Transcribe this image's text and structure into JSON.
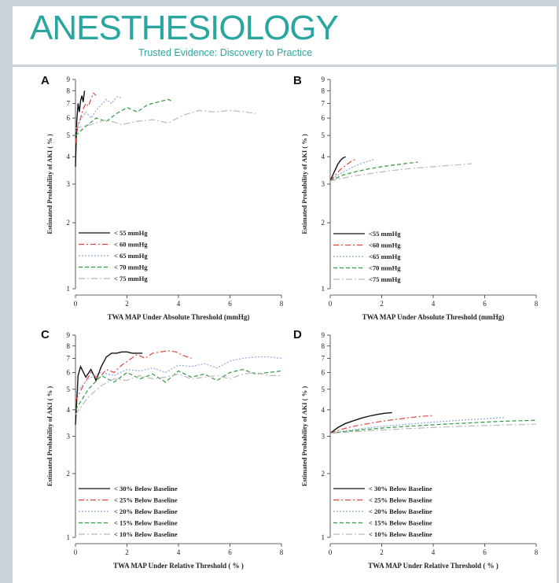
{
  "journal": {
    "title": "ANESTHESIOLOGY",
    "tagline": "Trusted Evidence: Discovery to Practice"
  },
  "colors": {
    "brand": "#2aa6a0",
    "series": [
      "#111111",
      "#e0443c",
      "#8aa7dc",
      "#2f9a3f",
      "#b9b9b9"
    ]
  },
  "chart_data": [
    {
      "panel": "A",
      "type": "line",
      "ylabel": "Estimated Probability of AKI ( % )",
      "xlabel": "TWA MAP Under Absolute Threshold (mmHg)",
      "ylim": [
        1,
        9
      ],
      "xlim": [
        0,
        8
      ],
      "y_scale": "log",
      "yticks": [
        1,
        2,
        3,
        4,
        5,
        6,
        7,
        8,
        9
      ],
      "xticks": [
        0,
        2,
        4,
        6,
        8
      ],
      "legend_position": "bottom-left",
      "series": [
        {
          "name": "< 55 mmHg",
          "x": [
            0,
            0.05,
            0.1,
            0.15,
            0.2,
            0.25,
            0.3,
            0.35
          ],
          "y": [
            3.6,
            5.8,
            7.0,
            6.4,
            7.2,
            7.6,
            7.1,
            8.0
          ]
        },
        {
          "name": "< 60 mmHg",
          "x": [
            0,
            0.1,
            0.2,
            0.3,
            0.4,
            0.5,
            0.6,
            0.7,
            0.8
          ],
          "y": [
            4.6,
            5.6,
            6.0,
            6.6,
            7.0,
            6.8,
            7.3,
            7.8,
            7.6
          ]
        },
        {
          "name": "< 65 mmHg",
          "x": [
            0,
            0.2,
            0.4,
            0.6,
            0.8,
            1.0,
            1.2,
            1.4,
            1.6,
            1.8
          ],
          "y": [
            5.2,
            5.9,
            6.4,
            6.0,
            6.5,
            6.9,
            7.3,
            7.0,
            7.5,
            7.4
          ]
        },
        {
          "name": "< 70 mmHg",
          "x": [
            0,
            0.4,
            0.8,
            1.2,
            1.6,
            2.0,
            2.4,
            2.8,
            3.2,
            3.6,
            3.8
          ],
          "y": [
            5.0,
            5.5,
            6.0,
            5.8,
            6.3,
            6.7,
            6.4,
            6.9,
            7.1,
            7.3,
            7.1
          ]
        },
        {
          "name": "< 75 mmHg",
          "x": [
            0,
            0.6,
            1.2,
            1.8,
            2.4,
            3.0,
            3.6,
            4.2,
            4.8,
            5.4,
            6.0,
            6.6,
            7.0
          ],
          "y": [
            5.4,
            5.6,
            5.9,
            5.6,
            5.8,
            5.9,
            5.7,
            6.2,
            6.5,
            6.4,
            6.5,
            6.4,
            6.3
          ]
        }
      ]
    },
    {
      "panel": "B",
      "type": "line",
      "ylabel": "Estimated Probability of AKI ( % )",
      "xlabel": "TWA MAP Under Absolute Threshold (mmHg)",
      "ylim": [
        1,
        9
      ],
      "xlim": [
        0,
        8
      ],
      "y_scale": "log",
      "yticks": [
        1,
        2,
        3,
        4,
        5,
        6,
        7,
        8,
        9
      ],
      "xticks": [
        0,
        2,
        4,
        6,
        8
      ],
      "legend_position": "bottom-left",
      "series": [
        {
          "name": "<55 mmHg",
          "x": [
            0,
            0.1,
            0.2,
            0.3,
            0.4,
            0.5,
            0.6
          ],
          "y": [
            3.1,
            3.3,
            3.5,
            3.7,
            3.85,
            3.95,
            4.0
          ]
        },
        {
          "name": "<60 mmHg",
          "x": [
            0,
            0.2,
            0.4,
            0.6,
            0.8,
            1.0
          ],
          "y": [
            3.1,
            3.3,
            3.5,
            3.65,
            3.8,
            3.9
          ]
        },
        {
          "name": "<65 mmHg",
          "x": [
            0,
            0.3,
            0.6,
            0.9,
            1.2,
            1.5,
            1.7
          ],
          "y": [
            3.1,
            3.3,
            3.45,
            3.6,
            3.72,
            3.82,
            3.88
          ]
        },
        {
          "name": "<70 mmHg",
          "x": [
            0,
            0.5,
            1.0,
            1.5,
            2.0,
            2.5,
            3.0,
            3.4
          ],
          "y": [
            3.1,
            3.3,
            3.42,
            3.52,
            3.6,
            3.67,
            3.73,
            3.78
          ]
        },
        {
          "name": "<75 mmHg",
          "x": [
            0,
            0.8,
            1.6,
            2.4,
            3.2,
            4.0,
            4.8,
            5.5
          ],
          "y": [
            3.1,
            3.25,
            3.36,
            3.46,
            3.54,
            3.6,
            3.66,
            3.72
          ]
        }
      ]
    },
    {
      "panel": "C",
      "type": "line",
      "ylabel": "Estimated Probability of AKI ( % )",
      "xlabel": "TWA MAP Under Relative Threshold ( % )",
      "ylim": [
        1,
        9
      ],
      "xlim": [
        0,
        8
      ],
      "y_scale": "log",
      "yticks": [
        1,
        2,
        3,
        4,
        5,
        6,
        7,
        8,
        9
      ],
      "xticks": [
        0,
        2,
        4,
        6,
        8
      ],
      "legend_position": "bottom-left",
      "series": [
        {
          "name": "< 30% Below Baseline",
          "x": [
            0,
            0.1,
            0.2,
            0.4,
            0.6,
            0.8,
            1.0,
            1.2,
            1.4,
            1.6,
            1.8,
            2.0,
            2.2,
            2.6
          ],
          "y": [
            3.4,
            5.8,
            6.4,
            5.7,
            6.2,
            5.5,
            6.4,
            7.1,
            7.4,
            7.4,
            7.5,
            7.5,
            7.4,
            7.4
          ]
        },
        {
          "name": "< 25% Below Baseline",
          "x": [
            0,
            0.3,
            0.6,
            0.9,
            1.2,
            1.5,
            1.8,
            2.1,
            2.4,
            2.7,
            3.0,
            3.3,
            3.6,
            3.9,
            4.2,
            4.5
          ],
          "y": [
            4.4,
            5.2,
            6.0,
            5.6,
            6.2,
            6.0,
            6.5,
            6.9,
            7.3,
            7.0,
            7.4,
            7.5,
            7.6,
            7.5,
            7.2,
            7.0
          ]
        },
        {
          "name": "< 20% Below Baseline",
          "x": [
            0,
            0.5,
            1.0,
            1.5,
            2.0,
            2.5,
            3.0,
            3.5,
            4.0,
            4.5,
            5.0,
            5.5,
            6.0,
            6.5,
            7.0,
            7.5,
            8.0
          ],
          "y": [
            4.8,
            5.6,
            6.0,
            5.8,
            6.2,
            6.1,
            6.3,
            6.0,
            6.5,
            6.4,
            6.6,
            6.3,
            6.8,
            7.0,
            7.1,
            7.1,
            7.0
          ]
        },
        {
          "name": "< 15% Below Baseline",
          "x": [
            0,
            0.5,
            1.0,
            1.5,
            2.0,
            2.5,
            3.0,
            3.5,
            4.0,
            4.5,
            5.0,
            5.5,
            6.0,
            6.5,
            7.0,
            7.5,
            8.0
          ],
          "y": [
            4.0,
            5.0,
            5.8,
            5.4,
            6.0,
            5.6,
            5.9,
            5.4,
            6.1,
            5.7,
            5.9,
            5.5,
            6.0,
            6.2,
            5.9,
            6.0,
            6.1
          ]
        },
        {
          "name": "< 10% Below Baseline",
          "x": [
            0,
            0.5,
            1.0,
            1.5,
            2.0,
            2.5,
            3.0,
            3.5,
            4.0,
            4.5,
            5.0,
            5.5,
            6.0,
            6.5,
            7.0,
            7.5,
            8.0
          ],
          "y": [
            3.8,
            4.6,
            5.2,
            5.6,
            5.5,
            5.8,
            5.6,
            5.7,
            5.9,
            5.6,
            5.7,
            5.8,
            5.6,
            5.9,
            6.0,
            5.8,
            5.8
          ]
        }
      ]
    },
    {
      "panel": "D",
      "type": "line",
      "ylabel": "Estimated Probability of AKI ( % )",
      "xlabel": "TWA MAP Under Relative Threshold ( % )",
      "ylim": [
        1,
        9
      ],
      "xlim": [
        0,
        8
      ],
      "y_scale": "log",
      "yticks": [
        1,
        2,
        3,
        4,
        5,
        6,
        7,
        8,
        9
      ],
      "xticks": [
        0,
        2,
        4,
        6,
        8
      ],
      "legend_position": "bottom-left",
      "series": [
        {
          "name": "< 30% Below Baseline",
          "x": [
            0,
            0.3,
            0.6,
            0.9,
            1.2,
            1.5,
            1.8,
            2.1,
            2.4
          ],
          "y": [
            3.1,
            3.3,
            3.45,
            3.55,
            3.65,
            3.73,
            3.8,
            3.85,
            3.88
          ]
        },
        {
          "name": "< 25% Below Baseline",
          "x": [
            0,
            0.5,
            1.0,
            1.5,
            2.0,
            2.5,
            3.0,
            3.5,
            4.0
          ],
          "y": [
            3.1,
            3.25,
            3.36,
            3.45,
            3.53,
            3.6,
            3.66,
            3.72,
            3.76
          ]
        },
        {
          "name": "< 20% Below Baseline",
          "x": [
            0,
            1.0,
            2.0,
            3.0,
            4.0,
            5.0,
            6.0,
            6.8
          ],
          "y": [
            3.1,
            3.24,
            3.34,
            3.42,
            3.5,
            3.57,
            3.63,
            3.68
          ]
        },
        {
          "name": "< 15% Below Baseline",
          "x": [
            0,
            1.0,
            2.0,
            3.0,
            4.0,
            5.0,
            6.0,
            7.0,
            8.0
          ],
          "y": [
            3.1,
            3.2,
            3.28,
            3.34,
            3.4,
            3.45,
            3.5,
            3.54,
            3.57
          ]
        },
        {
          "name": "< 10% Below Baseline",
          "x": [
            0,
            1.0,
            2.0,
            3.0,
            4.0,
            5.0,
            6.0,
            7.0,
            8.0
          ],
          "y": [
            3.1,
            3.16,
            3.21,
            3.26,
            3.3,
            3.34,
            3.37,
            3.4,
            3.42
          ]
        }
      ]
    }
  ]
}
